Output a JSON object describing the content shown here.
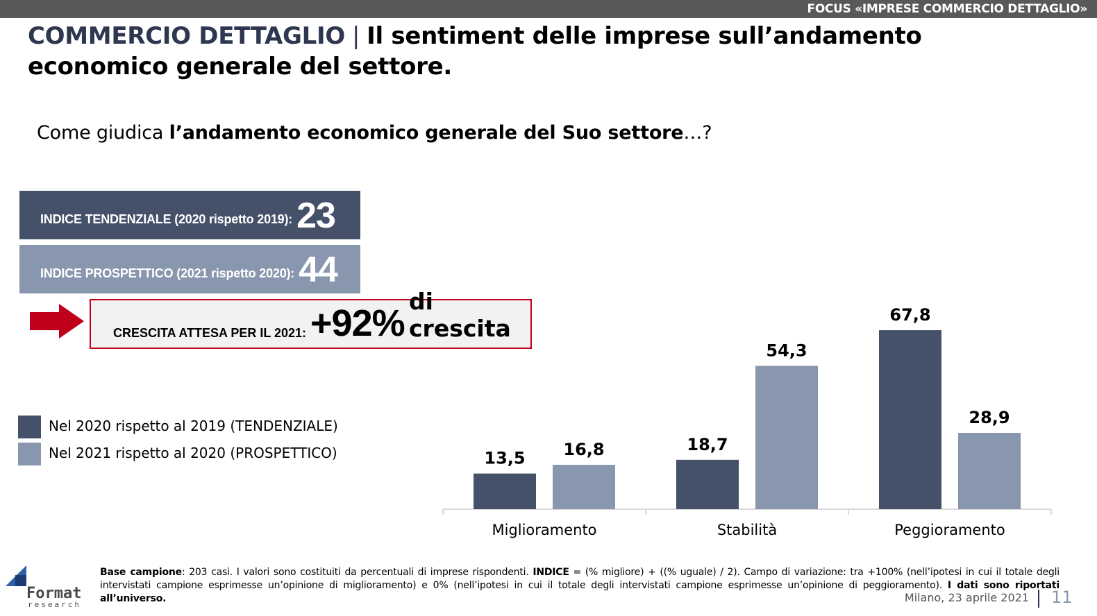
{
  "header": {
    "focus_label": "FOCUS «IMPRESE COMMERCIO DETTAGLIO»",
    "title_brand": "COMMERCIO DETTAGLIO",
    "title_separator": "|",
    "title_rest": "Il sentiment delle imprese sull’andamento economico generale del settore."
  },
  "question": {
    "prefix": "Come giudica ",
    "bold": "l’andamento economico generale del Suo settore",
    "suffix": "…?"
  },
  "indices": {
    "tendenziale_label": "INDICE TENDENZIALE (2020 rispetto 2019):",
    "tendenziale_value": "23",
    "prospettico_label": "INDICE PROSPETTICO (2021 rispetto 2020):",
    "prospettico_value": "44"
  },
  "growth": {
    "label": "CRESCITA ATTESA PER IL 2021:",
    "value": "+92%",
    "text": "di crescita"
  },
  "colors": {
    "dark": "#455069",
    "light": "#8896ae",
    "accent_red": "#c0001b",
    "brand_navy": "#2e3650"
  },
  "legend": [
    {
      "label": "Nel 2020 rispetto al 2019 (TENDENZIALE)",
      "color": "#455069"
    },
    {
      "label": "Nel 2021 rispetto al 2020 (PROSPETTICO)",
      "color": "#8896ae"
    }
  ],
  "chart_data": {
    "type": "bar",
    "categories": [
      "Miglioramento",
      "Stabilità",
      "Peggioramento"
    ],
    "series": [
      {
        "name": "Nel 2020 rispetto al 2019 (TENDENZIALE)",
        "values": [
          13.5,
          18.7,
          67.8
        ],
        "labels": [
          "13,5",
          "18,7",
          "67,8"
        ],
        "color": "#455069"
      },
      {
        "name": "Nel 2021 rispetto al 2020 (PROSPETTICO)",
        "values": [
          16.8,
          54.3,
          28.9
        ],
        "labels": [
          "16,8",
          "54,3",
          "28,9"
        ],
        "color": "#8896ae"
      }
    ],
    "ylim": [
      0,
      67.8
    ],
    "grid": false,
    "legend_position": "left"
  },
  "footer": {
    "note_bold_1": "Base campione",
    "note_1": ": 203 casi. I valori sono costituiti da percentuali di imprese rispondenti. ",
    "note_bold_2": "INDICE",
    "note_2": " = (% migliore) + ((% uguale) / 2). Campo di variazione: tra +100% (nell’ipotesi in cui il totale degli intervistati campione esprimesse un’opinione di miglioramento) e 0% (nell’ipotesi in cui il totale degli intervistati campione esprimesse un’opinione di peggioramento). ",
    "note_bold_3": "I dati sono riportati all’universo.",
    "date": "Milano, 23 aprile 2021",
    "page": "11",
    "logo_word": "Format",
    "logo_sub": "research"
  }
}
